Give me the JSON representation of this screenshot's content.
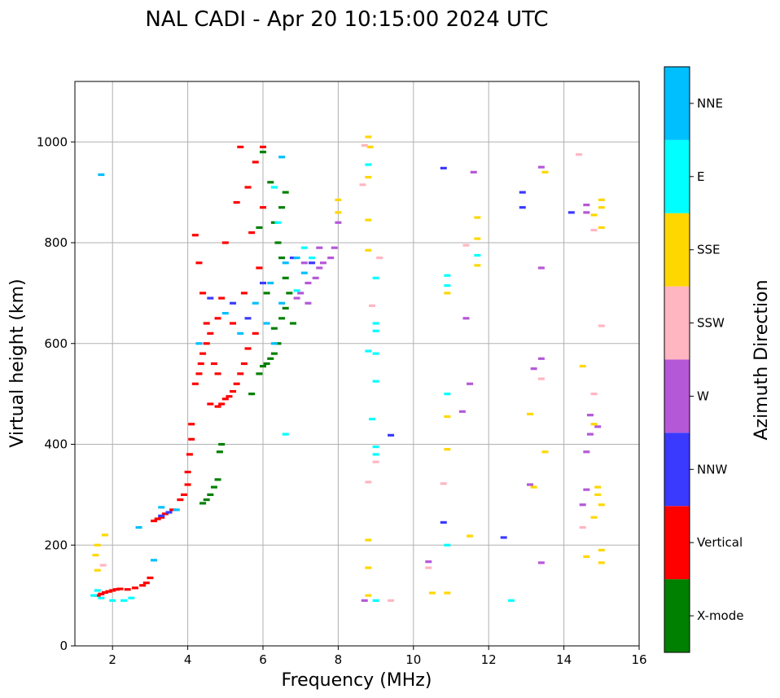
{
  "chart_data": {
    "type": "scatter",
    "title": "NAL CADI - Apr 20 10:15:00 2024 UTC",
    "xlabel": "Frequency (MHz)",
    "ylabel": "Virtual height (km)",
    "xlim": [
      1,
      16
    ],
    "ylim": [
      0,
      1120
    ],
    "xticks": [
      2,
      4,
      6,
      8,
      10,
      12,
      14,
      16
    ],
    "yticks": [
      0,
      200,
      400,
      600,
      800,
      1000
    ],
    "grid": true,
    "colorbar": {
      "title": "Azimuth Direction",
      "categories": [
        {
          "name": "X-mode",
          "color": "#008000"
        },
        {
          "name": "Vertical",
          "color": "#ff0000"
        },
        {
          "name": "NNW",
          "color": "#3a3aff"
        },
        {
          "name": "W",
          "color": "#b558d8"
        },
        {
          "name": "SSW",
          "color": "#ffb6c1"
        },
        {
          "name": "SSE",
          "color": "#ffd700"
        },
        {
          "name": "E",
          "color": "#00ffff"
        },
        {
          "name": "NNE",
          "color": "#00bfff"
        }
      ]
    },
    "series": [
      {
        "name": "Vertical",
        "points": [
          [
            1.6,
            100
          ],
          [
            1.7,
            103
          ],
          [
            1.8,
            106
          ],
          [
            1.9,
            108
          ],
          [
            2.0,
            110
          ],
          [
            2.1,
            112
          ],
          [
            2.2,
            113
          ],
          [
            2.4,
            112
          ],
          [
            2.6,
            115
          ],
          [
            2.8,
            120
          ],
          [
            2.9,
            125
          ],
          [
            3.0,
            135
          ],
          [
            3.1,
            248
          ],
          [
            3.2,
            252
          ],
          [
            3.3,
            255
          ],
          [
            3.4,
            262
          ],
          [
            3.6,
            270
          ],
          [
            3.8,
            290
          ],
          [
            3.9,
            300
          ],
          [
            4.0,
            320
          ],
          [
            4.0,
            345
          ],
          [
            4.05,
            380
          ],
          [
            4.1,
            410
          ],
          [
            4.1,
            440
          ],
          [
            4.2,
            520
          ],
          [
            4.3,
            540
          ],
          [
            4.35,
            560
          ],
          [
            4.4,
            580
          ],
          [
            4.5,
            600
          ],
          [
            4.5,
            640
          ],
          [
            4.4,
            700
          ],
          [
            4.6,
            620
          ],
          [
            4.7,
            560
          ],
          [
            4.8,
            540
          ],
          [
            4.6,
            480
          ],
          [
            4.8,
            475
          ],
          [
            4.9,
            480
          ],
          [
            5.0,
            490
          ],
          [
            5.1,
            495
          ],
          [
            5.2,
            505
          ],
          [
            5.3,
            520
          ],
          [
            5.4,
            540
          ],
          [
            5.5,
            560
          ],
          [
            5.6,
            590
          ],
          [
            5.8,
            620
          ],
          [
            5.2,
            640
          ],
          [
            4.3,
            760
          ],
          [
            4.2,
            815
          ],
          [
            5.0,
            800
          ],
          [
            5.3,
            880
          ],
          [
            5.8,
            960
          ],
          [
            5.6,
            910
          ],
          [
            4.8,
            650
          ],
          [
            4.9,
            690
          ],
          [
            5.5,
            700
          ],
          [
            5.9,
            750
          ],
          [
            5.7,
            820
          ],
          [
            6.0,
            870
          ],
          [
            6.0,
            990
          ],
          [
            5.4,
            990
          ]
        ]
      },
      {
        "name": "X-mode",
        "points": [
          [
            4.4,
            283
          ],
          [
            4.5,
            290
          ],
          [
            4.6,
            300
          ],
          [
            4.7,
            315
          ],
          [
            4.8,
            330
          ],
          [
            4.85,
            385
          ],
          [
            4.9,
            400
          ],
          [
            5.9,
            540
          ],
          [
            6.0,
            555
          ],
          [
            6.1,
            560
          ],
          [
            6.2,
            570
          ],
          [
            6.3,
            580
          ],
          [
            6.4,
            600
          ],
          [
            6.3,
            630
          ],
          [
            6.5,
            650
          ],
          [
            6.6,
            670
          ],
          [
            6.7,
            700
          ],
          [
            6.6,
            730
          ],
          [
            6.5,
            770
          ],
          [
            6.4,
            800
          ],
          [
            6.3,
            840
          ],
          [
            6.5,
            870
          ],
          [
            6.6,
            900
          ],
          [
            6.2,
            920
          ],
          [
            6.0,
            980
          ],
          [
            5.9,
            830
          ],
          [
            6.8,
            640
          ],
          [
            6.1,
            700
          ],
          [
            5.7,
            500
          ]
        ]
      },
      {
        "name": "NNW",
        "points": [
          [
            3.3,
            258
          ],
          [
            3.5,
            265
          ],
          [
            4.6,
            690
          ],
          [
            5.2,
            680
          ],
          [
            5.6,
            650
          ],
          [
            6.0,
            720
          ],
          [
            6.8,
            770
          ],
          [
            7.3,
            760
          ],
          [
            9.4,
            418
          ],
          [
            10.8,
            948
          ],
          [
            10.8,
            245
          ],
          [
            12.4,
            215
          ],
          [
            12.9,
            870
          ],
          [
            12.9,
            900
          ],
          [
            14.2,
            860
          ]
        ]
      },
      {
        "name": "W",
        "points": [
          [
            6.9,
            690
          ],
          [
            7.0,
            700
          ],
          [
            7.2,
            720
          ],
          [
            7.4,
            730
          ],
          [
            7.5,
            750
          ],
          [
            7.6,
            760
          ],
          [
            7.8,
            770
          ],
          [
            7.9,
            790
          ],
          [
            7.2,
            680
          ],
          [
            7.1,
            760
          ],
          [
            7.5,
            790
          ],
          [
            8.0,
            840
          ],
          [
            8.7,
            90
          ],
          [
            10.4,
            167
          ],
          [
            11.3,
            465
          ],
          [
            11.4,
            650
          ],
          [
            11.5,
            520
          ],
          [
            11.6,
            940
          ],
          [
            13.1,
            320
          ],
          [
            13.2,
            550
          ],
          [
            13.4,
            570
          ],
          [
            13.4,
            750
          ],
          [
            13.4,
            950
          ],
          [
            13.4,
            165
          ],
          [
            14.5,
            280
          ],
          [
            14.6,
            310
          ],
          [
            14.6,
            385
          ],
          [
            14.7,
            420
          ],
          [
            14.7,
            458
          ],
          [
            14.9,
            435
          ],
          [
            14.6,
            860
          ],
          [
            14.6,
            875
          ]
        ]
      },
      {
        "name": "SSW",
        "points": [
          [
            1.75,
            160
          ],
          [
            8.7,
            993
          ],
          [
            8.65,
            915
          ],
          [
            8.8,
            325
          ],
          [
            8.9,
            675
          ],
          [
            9.0,
            365
          ],
          [
            9.1,
            770
          ],
          [
            9.4,
            90
          ],
          [
            10.4,
            155
          ],
          [
            10.8,
            322
          ],
          [
            11.4,
            795
          ],
          [
            13.4,
            530
          ],
          [
            14.4,
            975
          ],
          [
            14.5,
            235
          ],
          [
            14.8,
            500
          ],
          [
            14.8,
            825
          ],
          [
            15.0,
            635
          ]
        ]
      },
      {
        "name": "SSE",
        "points": [
          [
            1.6,
            200
          ],
          [
            1.55,
            180
          ],
          [
            1.6,
            150
          ],
          [
            1.8,
            220
          ],
          [
            8.0,
            860
          ],
          [
            8.0,
            885
          ],
          [
            8.8,
            1010
          ],
          [
            8.85,
            990
          ],
          [
            8.8,
            930
          ],
          [
            8.8,
            845
          ],
          [
            8.8,
            785
          ],
          [
            8.8,
            210
          ],
          [
            8.8,
            155
          ],
          [
            8.8,
            100
          ],
          [
            10.5,
            105
          ],
          [
            10.9,
            700
          ],
          [
            10.9,
            455
          ],
          [
            10.9,
            390
          ],
          [
            10.9,
            105
          ],
          [
            11.5,
            218
          ],
          [
            11.7,
            850
          ],
          [
            11.7,
            808
          ],
          [
            11.7,
            755
          ],
          [
            13.1,
            460
          ],
          [
            13.2,
            315
          ],
          [
            13.5,
            940
          ],
          [
            13.5,
            385
          ],
          [
            14.5,
            555
          ],
          [
            14.6,
            177
          ],
          [
            14.8,
            855
          ],
          [
            14.8,
            440
          ],
          [
            14.8,
            255
          ],
          [
            14.9,
            315
          ],
          [
            14.9,
            300
          ],
          [
            15.0,
            885
          ],
          [
            15.0,
            830
          ],
          [
            15.0,
            870
          ],
          [
            15.0,
            280
          ],
          [
            15.0,
            190
          ],
          [
            15.0,
            165
          ]
        ]
      },
      {
        "name": "E",
        "points": [
          [
            1.5,
            100
          ],
          [
            1.6,
            110
          ],
          [
            1.7,
            95
          ],
          [
            2.0,
            90
          ],
          [
            2.3,
            90
          ],
          [
            2.5,
            95
          ],
          [
            8.8,
            955
          ],
          [
            8.8,
            585
          ],
          [
            8.9,
            450
          ],
          [
            9.0,
            730
          ],
          [
            9.0,
            640
          ],
          [
            9.0,
            625
          ],
          [
            9.0,
            580
          ],
          [
            9.0,
            525
          ],
          [
            9.0,
            395
          ],
          [
            9.0,
            380
          ],
          [
            9.0,
            90
          ],
          [
            10.9,
            735
          ],
          [
            10.9,
            715
          ],
          [
            10.9,
            500
          ],
          [
            10.9,
            200
          ],
          [
            11.7,
            775
          ],
          [
            12.6,
            90
          ],
          [
            6.9,
            705
          ],
          [
            7.1,
            790
          ],
          [
            7.3,
            770
          ],
          [
            6.6,
            420
          ],
          [
            6.4,
            840
          ],
          [
            6.3,
            910
          ]
        ]
      },
      {
        "name": "NNE",
        "points": [
          [
            1.7,
            935
          ],
          [
            2.7,
            235
          ],
          [
            3.1,
            170
          ],
          [
            3.3,
            275
          ],
          [
            3.7,
            270
          ],
          [
            4.3,
            600
          ],
          [
            5.0,
            660
          ],
          [
            5.4,
            620
          ],
          [
            5.8,
            680
          ],
          [
            6.1,
            640
          ],
          [
            6.3,
            600
          ],
          [
            6.2,
            720
          ],
          [
            6.5,
            680
          ],
          [
            6.6,
            760
          ],
          [
            6.5,
            970
          ],
          [
            6.9,
            770
          ],
          [
            7.1,
            740
          ]
        ]
      }
    ]
  }
}
